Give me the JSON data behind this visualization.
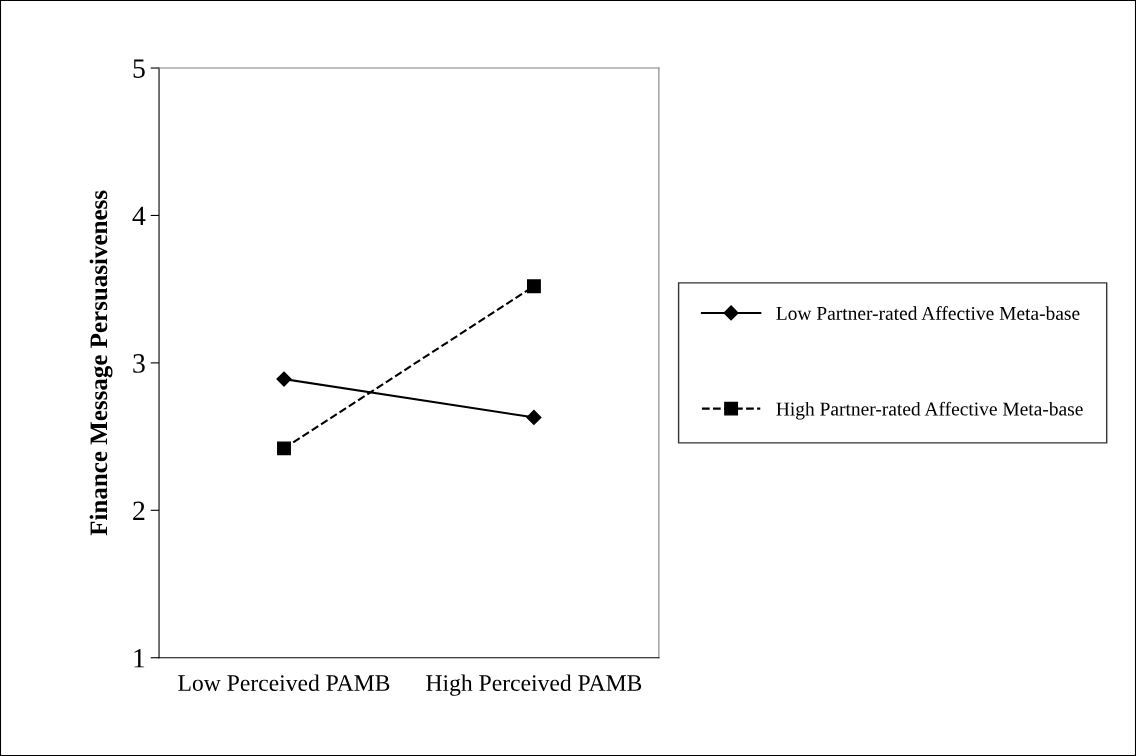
{
  "chart_data": {
    "type": "line",
    "ylabel": "Finance Message Persuasiveness",
    "categories": [
      "Low Perceived PAMB",
      "High Perceived PAMB"
    ],
    "series": [
      {
        "name": "Low Partner-rated Affective Meta-base",
        "color": "#000000",
        "values": [
          2.89,
          2.63
        ],
        "marker": "diamond",
        "line_style": "solid"
      },
      {
        "name": "High Partner-rated Affective Meta-base",
        "color": "#000000",
        "values": [
          2.42,
          3.52
        ],
        "marker": "square",
        "line_style": "dashed"
      }
    ],
    "ylim": [
      1,
      5
    ],
    "yticks": [
      1,
      2,
      3,
      4,
      5
    ],
    "grid": false,
    "legend": "right"
  }
}
